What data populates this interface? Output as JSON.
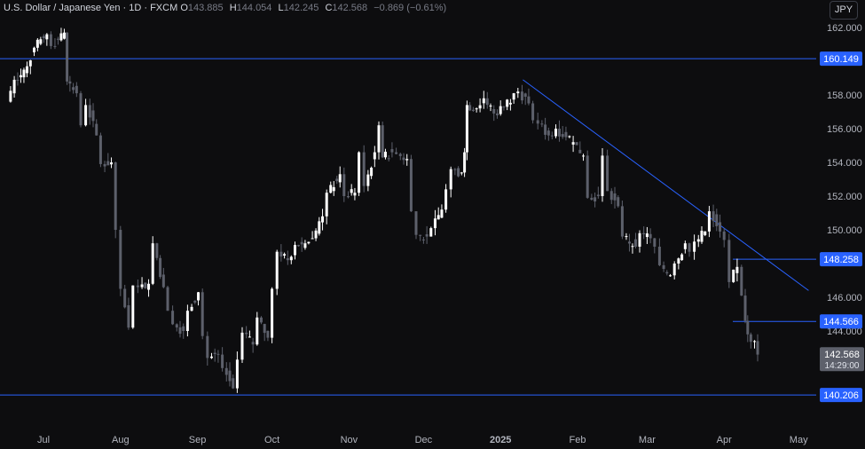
{
  "legend": {
    "symbol": "U.S. Dollar / Japanese Yen · 1D · FXCM",
    "o_label": "O",
    "o_value": "143.885",
    "h_label": "H",
    "h_value": "144.054",
    "l_label": "L",
    "l_value": "142.245",
    "c_label": "C",
    "c_value": "142.568",
    "change": "−0.869 (−0.61%)"
  },
  "currency_button": "JPY",
  "colors": {
    "background": "#0d0d0f",
    "candle_up": "#ffffff",
    "candle_down": "#5d606b",
    "level_line": "#2962ff",
    "trend_line": "#2962ff",
    "label_bg": "#2962ff",
    "price_tag_bg": "#5d606b"
  },
  "chart_data": {
    "type": "candlestick",
    "x_axis_labels": [
      "Jul",
      "Aug",
      "Sep",
      "Oct",
      "Nov",
      "Dec",
      "2025",
      "Feb",
      "Mar",
      "Apr",
      "May"
    ],
    "y_axis_ticks": [
      "162.000",
      "158.000",
      "156.000",
      "154.000",
      "152.000",
      "150.000",
      "146.000",
      "144.000"
    ],
    "ylim": [
      139.0,
      163.0
    ],
    "horizontal_levels": [
      {
        "price": 160.149,
        "label": "160.149",
        "extent": "full"
      },
      {
        "price": 148.258,
        "label": "148.258",
        "extent": "partial"
      },
      {
        "price": 144.566,
        "label": "144.566",
        "extent": "partial"
      },
      {
        "price": 140.206,
        "label": "140.206",
        "extent": "full"
      }
    ],
    "trend_line": {
      "start": [
        "2025-01-10",
        158.9
      ],
      "end": [
        "2025-05-05",
        146.4
      ]
    },
    "current_price": {
      "price": 142.568,
      "label": "142.568",
      "countdown": "14:29:00"
    },
    "closes": [
      [
        "2024-06-17",
        157.6
      ],
      [
        "2024-06-20",
        158.9
      ],
      [
        "2024-06-25",
        159.7
      ],
      [
        "2024-06-28",
        160.8
      ],
      [
        "2024-07-03",
        161.6
      ],
      [
        "2024-07-05",
        160.9
      ],
      [
        "2024-07-10",
        161.7
      ],
      [
        "2024-07-11",
        158.8
      ],
      [
        "2024-07-15",
        158.1
      ],
      [
        "2024-07-17",
        156.2
      ],
      [
        "2024-07-19",
        157.4
      ],
      [
        "2024-07-23",
        155.6
      ],
      [
        "2024-07-25",
        153.9
      ],
      [
        "2024-07-29",
        154.0
      ],
      [
        "2024-07-31",
        150.0
      ],
      [
        "2024-08-02",
        146.5
      ],
      [
        "2024-08-05",
        144.2
      ],
      [
        "2024-08-07",
        146.7
      ],
      [
        "2024-08-09",
        146.6
      ],
      [
        "2024-08-13",
        146.8
      ],
      [
        "2024-08-15",
        149.2
      ],
      [
        "2024-08-19",
        146.6
      ],
      [
        "2024-08-21",
        145.2
      ],
      [
        "2024-08-23",
        144.4
      ],
      [
        "2024-08-27",
        144.0
      ],
      [
        "2024-08-29",
        145.2
      ],
      [
        "2024-09-02",
        146.3
      ],
      [
        "2024-09-04",
        143.7
      ],
      [
        "2024-09-06",
        142.4
      ],
      [
        "2024-09-10",
        142.6
      ],
      [
        "2024-09-12",
        141.8
      ],
      [
        "2024-09-16",
        140.6
      ],
      [
        "2024-09-18",
        142.3
      ],
      [
        "2024-09-20",
        143.9
      ],
      [
        "2024-09-24",
        143.2
      ],
      [
        "2024-09-26",
        144.8
      ],
      [
        "2024-09-30",
        143.6
      ],
      [
        "2024-10-02",
        146.5
      ],
      [
        "2024-10-04",
        148.7
      ],
      [
        "2024-10-08",
        148.2
      ],
      [
        "2024-10-11",
        149.1
      ],
      [
        "2024-10-15",
        149.2
      ],
      [
        "2024-10-18",
        149.5
      ],
      [
        "2024-10-22",
        150.8
      ],
      [
        "2024-10-24",
        152.2
      ],
      [
        "2024-10-29",
        153.3
      ],
      [
        "2024-10-31",
        152.0
      ],
      [
        "2024-11-04",
        152.2
      ],
      [
        "2024-11-06",
        154.6
      ],
      [
        "2024-11-08",
        152.6
      ],
      [
        "2024-11-12",
        154.6
      ],
      [
        "2024-11-14",
        156.2
      ],
      [
        "2024-11-15",
        154.3
      ],
      [
        "2024-11-19",
        154.6
      ],
      [
        "2024-11-21",
        154.5
      ],
      [
        "2024-11-25",
        154.2
      ],
      [
        "2024-11-27",
        151.1
      ],
      [
        "2024-11-29",
        149.7
      ],
      [
        "2024-12-03",
        149.6
      ],
      [
        "2024-12-05",
        150.1
      ],
      [
        "2024-12-09",
        151.2
      ],
      [
        "2024-12-11",
        152.4
      ],
      [
        "2024-12-13",
        153.6
      ],
      [
        "2024-12-17",
        153.4
      ],
      [
        "2024-12-18",
        154.6
      ],
      [
        "2024-12-19",
        157.4
      ],
      [
        "2024-12-23",
        157.2
      ],
      [
        "2024-12-26",
        157.8
      ],
      [
        "2024-12-30",
        156.9
      ],
      [
        "2025-01-03",
        157.3
      ],
      [
        "2025-01-07",
        158.1
      ],
      [
        "2025-01-09",
        158.2
      ],
      [
        "2025-01-13",
        157.5
      ],
      [
        "2025-01-15",
        156.5
      ],
      [
        "2025-01-17",
        156.3
      ],
      [
        "2025-01-21",
        155.6
      ],
      [
        "2025-01-24",
        156.0
      ],
      [
        "2025-01-28",
        155.5
      ],
      [
        "2025-01-31",
        155.2
      ],
      [
        "2025-02-04",
        154.4
      ],
      [
        "2025-02-06",
        151.9
      ],
      [
        "2025-02-10",
        152.0
      ],
      [
        "2025-02-12",
        154.4
      ],
      [
        "2025-02-14",
        152.3
      ],
      [
        "2025-02-18",
        151.4
      ],
      [
        "2025-02-20",
        149.6
      ],
      [
        "2025-02-25",
        149.0
      ],
      [
        "2025-02-27",
        149.8
      ],
      [
        "2025-03-03",
        149.5
      ],
      [
        "2025-03-05",
        149.0
      ],
      [
        "2025-03-07",
        147.9
      ],
      [
        "2025-03-11",
        147.3
      ],
      [
        "2025-03-13",
        148.0
      ],
      [
        "2025-03-17",
        149.2
      ],
      [
        "2025-03-19",
        148.7
      ],
      [
        "2025-03-21",
        149.3
      ],
      [
        "2025-03-25",
        149.9
      ],
      [
        "2025-03-27",
        151.1
      ],
      [
        "2025-03-31",
        149.9
      ],
      [
        "2025-04-02",
        149.4
      ],
      [
        "2025-04-04",
        146.9
      ],
      [
        "2025-04-07",
        147.8
      ],
      [
        "2025-04-09",
        146.1
      ],
      [
        "2025-04-10",
        144.6
      ],
      [
        "2025-04-11",
        143.8
      ],
      [
        "2025-04-14",
        143.4
      ],
      [
        "2025-04-15",
        142.6
      ]
    ]
  }
}
